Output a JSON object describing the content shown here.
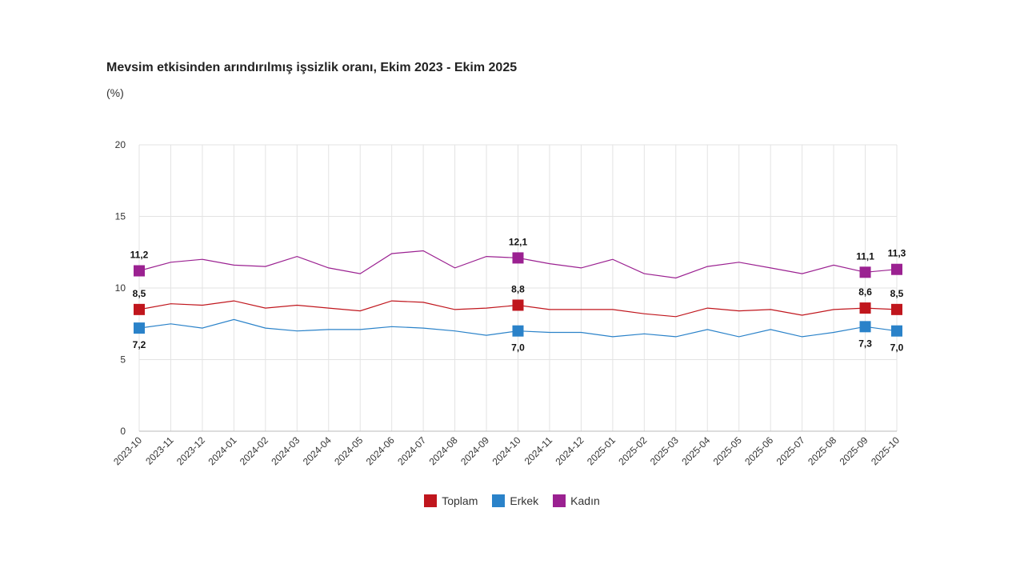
{
  "chart_data": {
    "type": "line",
    "title": "Mevsim etkisinden arındırılmış işsizlik oranı, Ekim 2023 - Ekim 2025",
    "unit": "(%)",
    "xlabel": "",
    "ylabel": "",
    "ylim": [
      0,
      20
    ],
    "yticks": [
      0,
      5,
      10,
      15,
      20
    ],
    "grid": true,
    "legend_position": "bottom-center",
    "categories": [
      "2023-10",
      "2023-11",
      "2023-12",
      "2024-01",
      "2024-02",
      "2024-03",
      "2024-04",
      "2024-05",
      "2024-06",
      "2024-07",
      "2024-08",
      "2024-09",
      "2024-10",
      "2024-11",
      "2024-12",
      "2025-01",
      "2025-02",
      "2025-03",
      "2025-04",
      "2025-05",
      "2025-06",
      "2025-07",
      "2025-08",
      "2025-09",
      "2025-10"
    ],
    "series": [
      {
        "name": "Toplam",
        "color": "#c0161d",
        "values": [
          8.5,
          8.9,
          8.8,
          9.1,
          8.6,
          8.8,
          8.6,
          8.4,
          9.1,
          9.0,
          8.5,
          8.6,
          8.8,
          8.5,
          8.5,
          8.5,
          8.2,
          8.0,
          8.6,
          8.4,
          8.5,
          8.1,
          8.5,
          8.6,
          8.5
        ],
        "markers": [
          {
            "index": 0,
            "label": "8,5",
            "pos": "above"
          },
          {
            "index": 12,
            "label": "8,8",
            "pos": "above"
          },
          {
            "index": 23,
            "label": "8,6",
            "pos": "above"
          },
          {
            "index": 24,
            "label": "8,5",
            "pos": "above"
          }
        ]
      },
      {
        "name": "Erkek",
        "color": "#2a82c9",
        "values": [
          7.2,
          7.5,
          7.2,
          7.8,
          7.2,
          7.0,
          7.1,
          7.1,
          7.3,
          7.2,
          7.0,
          6.7,
          7.0,
          6.9,
          6.9,
          6.6,
          6.8,
          6.6,
          7.1,
          6.6,
          7.1,
          6.6,
          6.9,
          7.3,
          7.0
        ],
        "markers": [
          {
            "index": 0,
            "label": "7,2",
            "pos": "below"
          },
          {
            "index": 12,
            "label": "7,0",
            "pos": "below"
          },
          {
            "index": 23,
            "label": "7,3",
            "pos": "below"
          },
          {
            "index": 24,
            "label": "7,0",
            "pos": "below"
          }
        ]
      },
      {
        "name": "Kadın",
        "color": "#9b2191",
        "values": [
          11.2,
          11.8,
          12.0,
          11.6,
          11.5,
          12.2,
          11.4,
          11.0,
          12.4,
          12.6,
          11.4,
          12.2,
          12.1,
          11.7,
          11.4,
          12.0,
          11.0,
          10.7,
          11.5,
          11.8,
          11.4,
          11.0,
          11.6,
          11.1,
          11.3
        ],
        "markers": [
          {
            "index": 0,
            "label": "11,2",
            "pos": "above"
          },
          {
            "index": 12,
            "label": "12,1",
            "pos": "above"
          },
          {
            "index": 23,
            "label": "11,1",
            "pos": "above"
          },
          {
            "index": 24,
            "label": "11,3",
            "pos": "above"
          }
        ]
      }
    ]
  }
}
